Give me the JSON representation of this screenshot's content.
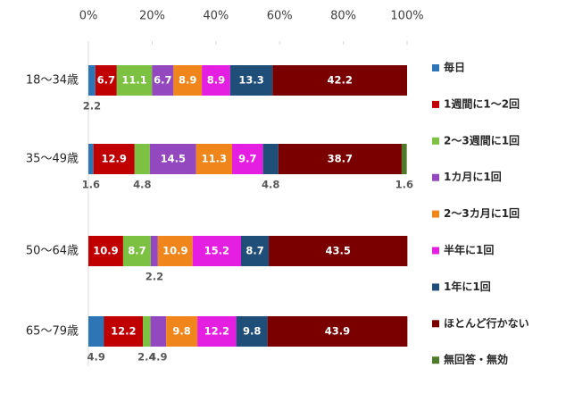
{
  "chart_data": {
    "type": "stacked_barh",
    "categories": [
      "18～34歳",
      "35～49歳",
      "50～64歳",
      "65～79歳"
    ],
    "series": [
      {
        "name": "毎日",
        "color": "#2e75b6",
        "values": [
          2.2,
          1.6,
          0,
          4.9
        ]
      },
      {
        "name": "1週間に1～2回",
        "color": "#c00000",
        "values": [
          6.7,
          12.9,
          10.9,
          12.2
        ]
      },
      {
        "name": "2～3週間に1回",
        "color": "#7cc142",
        "values": [
          11.1,
          4.8,
          8.7,
          2.4
        ]
      },
      {
        "name": "1カ月に1回",
        "color": "#9448c0",
        "values": [
          6.7,
          14.5,
          2.2,
          4.9
        ]
      },
      {
        "name": "2～3カ月に1回",
        "color": "#f0861b",
        "values": [
          8.9,
          11.3,
          10.9,
          9.8
        ]
      },
      {
        "name": "半年に1回",
        "color": "#e41fe1",
        "values": [
          8.9,
          9.7,
          15.2,
          12.2
        ]
      },
      {
        "name": "1年に1回",
        "color": "#1f4e79",
        "values": [
          13.3,
          4.8,
          8.7,
          9.8
        ]
      },
      {
        "name": "ほとんど行かない",
        "color": "#7a0000",
        "values": [
          42.2,
          38.7,
          43.5,
          43.9
        ]
      },
      {
        "name": "無回答・無効",
        "color": "#4e7a2a",
        "values": [
          0,
          1.6,
          0,
          0
        ]
      }
    ],
    "xlim": [
      0,
      100
    ],
    "xticks": [
      {
        "value": 0,
        "label": "0%"
      },
      {
        "value": 20,
        "label": "20%"
      },
      {
        "value": 40,
        "label": "40%"
      },
      {
        "value": 60,
        "label": "60%"
      },
      {
        "value": 80,
        "label": "80%"
      },
      {
        "value": 100,
        "label": "100%"
      }
    ],
    "legend": "right"
  }
}
